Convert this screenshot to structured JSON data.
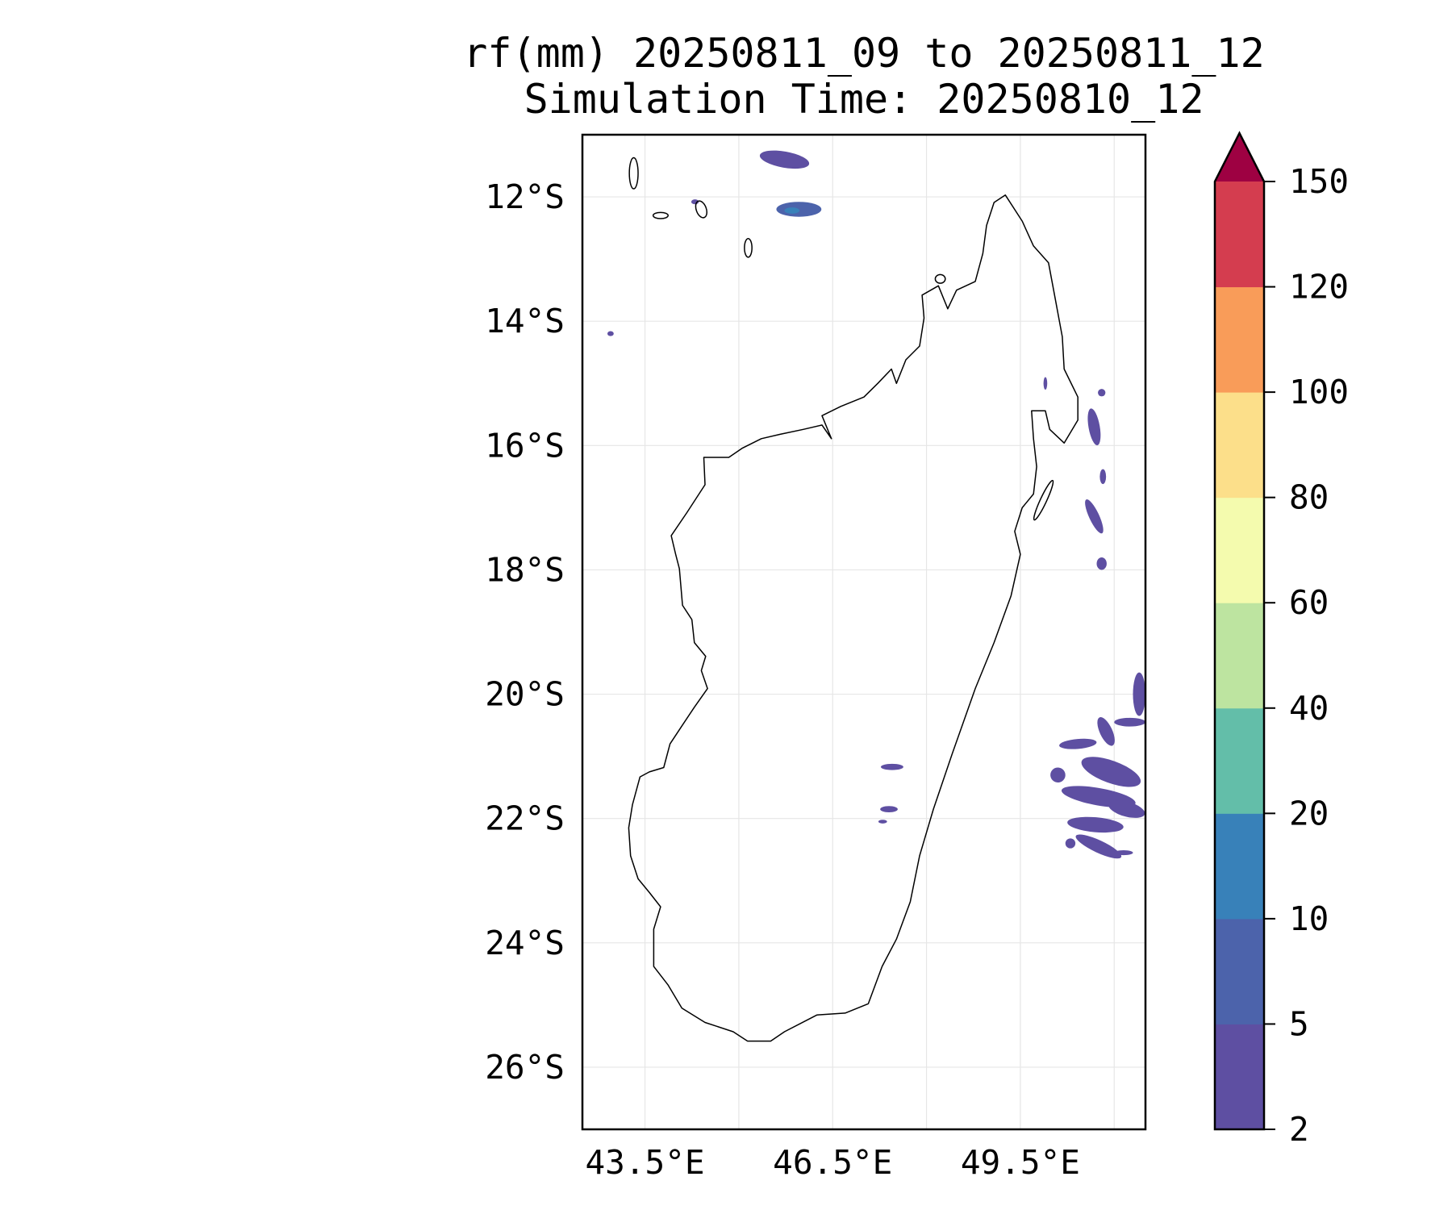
{
  "chart_data": {
    "type": "heatmap",
    "title": [
      "rf(mm) 20250811_09 to 20250811_12",
      "Simulation Time: 20250810_12"
    ],
    "xlim": [
      42.5,
      51.5
    ],
    "ylim": [
      -27,
      -11
    ],
    "x_ticks": [
      {
        "v": 43.5,
        "label": "43.5°E"
      },
      {
        "v": 46.5,
        "label": "46.5°E"
      },
      {
        "v": 49.5,
        "label": "49.5°E"
      }
    ],
    "x_grid": [
      43.5,
      45,
      46.5,
      48,
      49.5,
      51
    ],
    "y_ticks": [
      {
        "v": -12,
        "label": "12°S"
      },
      {
        "v": -14,
        "label": "14°S"
      },
      {
        "v": -16,
        "label": "16°S"
      },
      {
        "v": -18,
        "label": "18°S"
      },
      {
        "v": -20,
        "label": "20°S"
      },
      {
        "v": -22,
        "label": "22°S"
      },
      {
        "v": -24,
        "label": "24°S"
      },
      {
        "v": -26,
        "label": "26°S"
      }
    ],
    "grid": true,
    "colorbar": {
      "levels": [
        2,
        5,
        10,
        20,
        40,
        60,
        80,
        100,
        120,
        150
      ],
      "labels": [
        "2",
        "5",
        "10",
        "20",
        "40",
        "60",
        "80",
        "100",
        "120",
        "150"
      ],
      "colors": [
        "#5e4fa2",
        "#4c63ab",
        "#3881b9",
        "#63bea9",
        "#bde4a0",
        "#f4fbae",
        "#fcdf8a",
        "#f99c59",
        "#d43d4f"
      ],
      "extend_color": "#9e0142",
      "extend": "max"
    },
    "coastline": [
      [
        49.26,
        -11.97
      ],
      [
        49.53,
        -12.39
      ],
      [
        49.71,
        -12.79
      ],
      [
        49.95,
        -13.06
      ],
      [
        50.06,
        -13.65
      ],
      [
        50.17,
        -14.25
      ],
      [
        50.2,
        -14.77
      ],
      [
        50.42,
        -15.22
      ],
      [
        50.42,
        -15.59
      ],
      [
        50.2,
        -15.96
      ],
      [
        49.97,
        -15.74
      ],
      [
        49.9,
        -15.44
      ],
      [
        49.68,
        -15.44
      ],
      [
        49.71,
        -15.89
      ],
      [
        49.76,
        -16.34
      ],
      [
        49.71,
        -16.78
      ],
      [
        49.53,
        -17.0
      ],
      [
        49.41,
        -17.38
      ],
      [
        49.5,
        -17.75
      ],
      [
        49.35,
        -18.42
      ],
      [
        49.08,
        -19.17
      ],
      [
        48.78,
        -19.91
      ],
      [
        48.41,
        -20.96
      ],
      [
        48.11,
        -21.85
      ],
      [
        47.89,
        -22.6
      ],
      [
        47.74,
        -23.34
      ],
      [
        47.52,
        -23.94
      ],
      [
        47.29,
        -24.38
      ],
      [
        47.07,
        -24.98
      ],
      [
        46.7,
        -25.13
      ],
      [
        46.25,
        -25.16
      ],
      [
        45.73,
        -25.43
      ],
      [
        45.51,
        -25.58
      ],
      [
        45.14,
        -25.58
      ],
      [
        44.91,
        -25.43
      ],
      [
        44.46,
        -25.28
      ],
      [
        44.09,
        -25.05
      ],
      [
        43.87,
        -24.68
      ],
      [
        43.64,
        -24.38
      ],
      [
        43.64,
        -23.78
      ],
      [
        43.75,
        -23.42
      ],
      [
        43.57,
        -23.19
      ],
      [
        43.39,
        -22.97
      ],
      [
        43.27,
        -22.6
      ],
      [
        43.24,
        -22.15
      ],
      [
        43.3,
        -21.78
      ],
      [
        43.42,
        -21.33
      ],
      [
        43.57,
        -21.25
      ],
      [
        43.8,
        -21.18
      ],
      [
        43.9,
        -20.8
      ],
      [
        44.09,
        -20.51
      ],
      [
        44.29,
        -20.21
      ],
      [
        44.5,
        -19.91
      ],
      [
        44.4,
        -19.62
      ],
      [
        44.47,
        -19.39
      ],
      [
        44.29,
        -19.17
      ],
      [
        44.25,
        -18.8
      ],
      [
        44.1,
        -18.57
      ],
      [
        44.05,
        -17.98
      ],
      [
        43.99,
        -17.75
      ],
      [
        43.92,
        -17.45
      ],
      [
        44.17,
        -17.08
      ],
      [
        44.46,
        -16.63
      ],
      [
        44.44,
        -16.19
      ],
      [
        44.84,
        -16.19
      ],
      [
        45.06,
        -16.04
      ],
      [
        45.36,
        -15.89
      ],
      [
        45.66,
        -15.82
      ],
      [
        46.03,
        -15.74
      ],
      [
        46.33,
        -15.67
      ],
      [
        46.48,
        -15.89
      ],
      [
        46.33,
        -15.52
      ],
      [
        46.63,
        -15.37
      ],
      [
        47.0,
        -15.22
      ],
      [
        47.22,
        -15.0
      ],
      [
        47.44,
        -14.77
      ],
      [
        47.52,
        -15.0
      ],
      [
        47.67,
        -14.62
      ],
      [
        47.89,
        -14.4
      ],
      [
        47.96,
        -13.95
      ],
      [
        47.93,
        -13.58
      ],
      [
        48.19,
        -13.43
      ],
      [
        48.34,
        -13.8
      ],
      [
        48.48,
        -13.5
      ],
      [
        48.78,
        -13.36
      ],
      [
        48.9,
        -12.91
      ],
      [
        48.96,
        -12.46
      ],
      [
        49.08,
        -12.09
      ]
    ],
    "islands": [
      {
        "lon": 43.32,
        "lat": -11.62,
        "rlon": 0.07,
        "rlat": 0.25,
        "rot": 0
      },
      {
        "lon": 43.75,
        "lat": -12.3,
        "rlon": 0.12,
        "rlat": 0.05,
        "rot": 0
      },
      {
        "lon": 44.4,
        "lat": -12.2,
        "rlon": 0.08,
        "rlat": 0.14,
        "rot": -20
      },
      {
        "lon": 45.15,
        "lat": -12.82,
        "rlon": 0.06,
        "rlat": 0.15,
        "rot": 0
      },
      {
        "lon": 48.22,
        "lat": -13.32,
        "rlon": 0.08,
        "rlat": 0.07,
        "rot": 0
      },
      {
        "lon": 49.87,
        "lat": -16.88,
        "rlon": 0.05,
        "rlat": 0.35,
        "rot": 25
      }
    ],
    "rain_cells": [
      {
        "lon": 45.73,
        "lat": -11.4,
        "rlon": 0.4,
        "rlat": 0.13,
        "rot": 10,
        "value": 4
      },
      {
        "lon": 45.96,
        "lat": -12.2,
        "rlon": 0.36,
        "rlat": 0.12,
        "rot": 0,
        "value": 6
      },
      {
        "lon": 45.85,
        "lat": -12.22,
        "rlon": 0.12,
        "rlat": 0.05,
        "rot": 0,
        "value": 12
      },
      {
        "lon": 44.3,
        "lat": -12.08,
        "rlon": 0.06,
        "rlat": 0.04,
        "rot": 0,
        "value": 3
      },
      {
        "lon": 42.95,
        "lat": -14.2,
        "rlon": 0.05,
        "rlat": 0.04,
        "rot": 0,
        "value": 3
      },
      {
        "lon": 49.9,
        "lat": -15.0,
        "rlon": 0.03,
        "rlat": 0.1,
        "rot": 0,
        "value": 3
      },
      {
        "lon": 50.68,
        "lat": -15.7,
        "rlon": 0.09,
        "rlat": 0.3,
        "rot": -10,
        "value": 3
      },
      {
        "lon": 50.8,
        "lat": -15.15,
        "rlon": 0.06,
        "rlat": 0.06,
        "rot": 0,
        "value": 3
      },
      {
        "lon": 50.82,
        "lat": -16.5,
        "rlon": 0.05,
        "rlat": 0.12,
        "rot": 0,
        "value": 3
      },
      {
        "lon": 50.68,
        "lat": -17.14,
        "rlon": 0.08,
        "rlat": 0.3,
        "rot": -25,
        "value": 3
      },
      {
        "lon": 50.8,
        "lat": -17.9,
        "rlon": 0.08,
        "rlat": 0.1,
        "rot": 0,
        "value": 3
      },
      {
        "lon": 51.4,
        "lat": -20.0,
        "rlon": 0.1,
        "rlat": 0.35,
        "rot": 0,
        "value": 3
      },
      {
        "lon": 50.42,
        "lat": -20.8,
        "rlon": 0.3,
        "rlat": 0.08,
        "rot": -5,
        "value": 3
      },
      {
        "lon": 50.87,
        "lat": -20.6,
        "rlon": 0.1,
        "rlat": 0.25,
        "rot": -25,
        "value": 3
      },
      {
        "lon": 51.25,
        "lat": -20.45,
        "rlon": 0.25,
        "rlat": 0.07,
        "rot": 0,
        "value": 3
      },
      {
        "lon": 50.1,
        "lat": -21.3,
        "rlon": 0.12,
        "rlat": 0.12,
        "rot": 30,
        "value": 3
      },
      {
        "lon": 50.95,
        "lat": -21.25,
        "rlon": 0.5,
        "rlat": 0.18,
        "rot": 20,
        "value": 3
      },
      {
        "lon": 50.75,
        "lat": -21.65,
        "rlon": 0.6,
        "rlat": 0.14,
        "rot": 10,
        "value": 4
      },
      {
        "lon": 51.2,
        "lat": -21.85,
        "rlon": 0.3,
        "rlat": 0.12,
        "rot": 15,
        "value": 3
      },
      {
        "lon": 50.7,
        "lat": -22.1,
        "rlon": 0.45,
        "rlat": 0.12,
        "rot": 5,
        "value": 3
      },
      {
        "lon": 50.75,
        "lat": -22.45,
        "rlon": 0.4,
        "rlat": 0.1,
        "rot": 25,
        "value": 3
      },
      {
        "lon": 50.3,
        "lat": -22.4,
        "rlon": 0.08,
        "rlat": 0.08,
        "rot": 0,
        "value": 3
      },
      {
        "lon": 51.15,
        "lat": -22.55,
        "rlon": 0.15,
        "rlat": 0.04,
        "rot": 0,
        "value": 3
      },
      {
        "lon": 47.45,
        "lat": -21.17,
        "rlon": 0.18,
        "rlat": 0.05,
        "rot": 0,
        "value": 3
      },
      {
        "lon": 47.4,
        "lat": -21.85,
        "rlon": 0.14,
        "rlat": 0.05,
        "rot": 0,
        "value": 3
      },
      {
        "lon": 47.3,
        "lat": -22.05,
        "rlon": 0.07,
        "rlat": 0.03,
        "rot": 0,
        "value": 3
      }
    ]
  }
}
